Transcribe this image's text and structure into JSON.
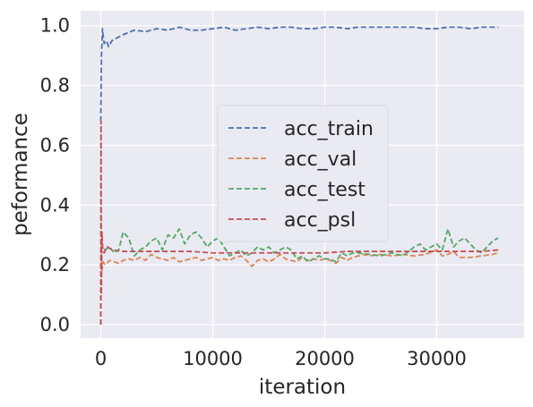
{
  "chart_data": {
    "type": "line",
    "xlabel": "iteration",
    "ylabel": "peformance",
    "xlim": [
      -1800,
      37800
    ],
    "ylim": [
      -0.045,
      1.05
    ],
    "x_ticks": [
      0,
      10000,
      20000,
      30000
    ],
    "y_ticks": [
      0.0,
      0.2,
      0.4,
      0.6,
      0.8,
      1.0
    ],
    "x_tick_labels": [
      "0",
      "10000",
      "20000",
      "30000"
    ],
    "y_tick_labels": [
      "0.0",
      "0.2",
      "0.4",
      "0.6",
      "0.8",
      "1.0"
    ],
    "grid": true,
    "background": "#EAEAF2",
    "legend_position": "center-right",
    "line_style": "dashed",
    "series": [
      {
        "name": "acc_train",
        "color": "#4C72B0",
        "points": [
          [
            0,
            0.68
          ],
          [
            60,
            0.9
          ],
          [
            150,
            0.99
          ],
          [
            300,
            0.94
          ],
          [
            500,
            0.95
          ],
          [
            700,
            0.93
          ],
          [
            1000,
            0.95
          ],
          [
            1500,
            0.96
          ],
          [
            2000,
            0.97
          ],
          [
            3000,
            0.985
          ],
          [
            4000,
            0.98
          ],
          [
            5000,
            0.99
          ],
          [
            6000,
            0.985
          ],
          [
            7000,
            0.995
          ],
          [
            8000,
            0.985
          ],
          [
            9000,
            0.985
          ],
          [
            10000,
            0.99
          ],
          [
            11000,
            0.995
          ],
          [
            12000,
            0.985
          ],
          [
            13000,
            0.99
          ],
          [
            14000,
            0.995
          ],
          [
            15000,
            0.99
          ],
          [
            16000,
            0.995
          ],
          [
            17000,
            0.995
          ],
          [
            18000,
            0.99
          ],
          [
            19000,
            0.99
          ],
          [
            20000,
            0.995
          ],
          [
            21000,
            0.995
          ],
          [
            22000,
            0.99
          ],
          [
            23000,
            0.995
          ],
          [
            24000,
            0.995
          ],
          [
            25000,
            0.995
          ],
          [
            26000,
            0.995
          ],
          [
            27000,
            0.995
          ],
          [
            28000,
            0.995
          ],
          [
            29000,
            0.99
          ],
          [
            30000,
            0.99
          ],
          [
            31000,
            0.995
          ],
          [
            32000,
            0.995
          ],
          [
            33000,
            0.99
          ],
          [
            34000,
            0.995
          ],
          [
            35500,
            0.995
          ]
        ]
      },
      {
        "name": "acc_val",
        "color": "#DD8452",
        "points": [
          [
            0,
            0.0
          ],
          [
            40,
            0.28
          ],
          [
            100,
            0.18
          ],
          [
            200,
            0.21
          ],
          [
            400,
            0.2
          ],
          [
            800,
            0.215
          ],
          [
            1200,
            0.21
          ],
          [
            1600,
            0.205
          ],
          [
            2000,
            0.215
          ],
          [
            2500,
            0.22
          ],
          [
            3000,
            0.215
          ],
          [
            3500,
            0.225
          ],
          [
            4000,
            0.215
          ],
          [
            4500,
            0.235
          ],
          [
            5000,
            0.225
          ],
          [
            5500,
            0.22
          ],
          [
            6000,
            0.215
          ],
          [
            6500,
            0.225
          ],
          [
            7000,
            0.21
          ],
          [
            7500,
            0.215
          ],
          [
            8000,
            0.22
          ],
          [
            8500,
            0.225
          ],
          [
            9000,
            0.215
          ],
          [
            9500,
            0.22
          ],
          [
            10000,
            0.225
          ],
          [
            10500,
            0.215
          ],
          [
            11000,
            0.22
          ],
          [
            11500,
            0.215
          ],
          [
            12000,
            0.225
          ],
          [
            12500,
            0.23
          ],
          [
            13000,
            0.215
          ],
          [
            13500,
            0.195
          ],
          [
            14000,
            0.215
          ],
          [
            14500,
            0.22
          ],
          [
            15000,
            0.21
          ],
          [
            15500,
            0.22
          ],
          [
            16000,
            0.235
          ],
          [
            16500,
            0.22
          ],
          [
            17000,
            0.215
          ],
          [
            17500,
            0.21
          ],
          [
            18000,
            0.225
          ],
          [
            18500,
            0.215
          ],
          [
            19000,
            0.22
          ],
          [
            19500,
            0.215
          ],
          [
            20000,
            0.22
          ],
          [
            20500,
            0.215
          ],
          [
            21000,
            0.205
          ],
          [
            21500,
            0.225
          ],
          [
            22000,
            0.215
          ],
          [
            22500,
            0.225
          ],
          [
            23000,
            0.23
          ],
          [
            23500,
            0.235
          ],
          [
            24000,
            0.23
          ],
          [
            25000,
            0.235
          ],
          [
            26000,
            0.23
          ],
          [
            27000,
            0.235
          ],
          [
            28000,
            0.23
          ],
          [
            29000,
            0.235
          ],
          [
            30000,
            0.25
          ],
          [
            30500,
            0.23
          ],
          [
            31000,
            0.235
          ],
          [
            31500,
            0.245
          ],
          [
            32000,
            0.225
          ],
          [
            33000,
            0.225
          ],
          [
            34000,
            0.23
          ],
          [
            35000,
            0.235
          ],
          [
            35500,
            0.24
          ]
        ]
      },
      {
        "name": "acc_test",
        "color": "#55A868",
        "points": [
          [
            0,
            0.0
          ],
          [
            40,
            0.25
          ],
          [
            150,
            0.26
          ],
          [
            400,
            0.25
          ],
          [
            800,
            0.26
          ],
          [
            1200,
            0.24
          ],
          [
            1600,
            0.25
          ],
          [
            2000,
            0.31
          ],
          [
            2500,
            0.29
          ],
          [
            3000,
            0.23
          ],
          [
            3500,
            0.25
          ],
          [
            4000,
            0.26
          ],
          [
            4500,
            0.28
          ],
          [
            5000,
            0.29
          ],
          [
            5500,
            0.25
          ],
          [
            6000,
            0.3
          ],
          [
            6500,
            0.29
          ],
          [
            7000,
            0.32
          ],
          [
            7500,
            0.27
          ],
          [
            8000,
            0.3
          ],
          [
            8500,
            0.31
          ],
          [
            9000,
            0.29
          ],
          [
            9500,
            0.26
          ],
          [
            10000,
            0.28
          ],
          [
            10500,
            0.29
          ],
          [
            11000,
            0.26
          ],
          [
            11500,
            0.23
          ],
          [
            12000,
            0.24
          ],
          [
            12500,
            0.25
          ],
          [
            13000,
            0.23
          ],
          [
            13500,
            0.24
          ],
          [
            14000,
            0.26
          ],
          [
            14500,
            0.25
          ],
          [
            15000,
            0.26
          ],
          [
            15500,
            0.24
          ],
          [
            16000,
            0.25
          ],
          [
            16500,
            0.26
          ],
          [
            17000,
            0.25
          ],
          [
            17500,
            0.22
          ],
          [
            18000,
            0.23
          ],
          [
            18500,
            0.21
          ],
          [
            19000,
            0.22
          ],
          [
            19500,
            0.23
          ],
          [
            20000,
            0.22
          ],
          [
            20500,
            0.22
          ],
          [
            21000,
            0.21
          ],
          [
            21500,
            0.24
          ],
          [
            22000,
            0.23
          ],
          [
            22500,
            0.24
          ],
          [
            23000,
            0.24
          ],
          [
            24000,
            0.235
          ],
          [
            25000,
            0.23
          ],
          [
            26000,
            0.24
          ],
          [
            27000,
            0.23
          ],
          [
            28000,
            0.26
          ],
          [
            28500,
            0.27
          ],
          [
            29000,
            0.25
          ],
          [
            29500,
            0.26
          ],
          [
            30000,
            0.27
          ],
          [
            30500,
            0.25
          ],
          [
            31000,
            0.32
          ],
          [
            31500,
            0.26
          ],
          [
            32000,
            0.28
          ],
          [
            32500,
            0.29
          ],
          [
            33000,
            0.27
          ],
          [
            33500,
            0.25
          ],
          [
            34000,
            0.24
          ],
          [
            34500,
            0.26
          ],
          [
            35000,
            0.28
          ],
          [
            35500,
            0.29
          ]
        ]
      },
      {
        "name": "acc_psl",
        "color": "#C44E52",
        "points": [
          [
            0,
            0.0
          ],
          [
            20,
            0.68
          ],
          [
            50,
            0.1
          ],
          [
            100,
            0.31
          ],
          [
            160,
            0.26
          ],
          [
            300,
            0.24
          ],
          [
            600,
            0.26
          ],
          [
            1000,
            0.25
          ],
          [
            2000,
            0.245
          ],
          [
            3000,
            0.245
          ],
          [
            4000,
            0.245
          ],
          [
            6000,
            0.245
          ],
          [
            8000,
            0.245
          ],
          [
            10000,
            0.24
          ],
          [
            12000,
            0.24
          ],
          [
            14000,
            0.24
          ],
          [
            16000,
            0.24
          ],
          [
            18000,
            0.24
          ],
          [
            20000,
            0.24
          ],
          [
            22000,
            0.245
          ],
          [
            24000,
            0.245
          ],
          [
            26000,
            0.245
          ],
          [
            28000,
            0.245
          ],
          [
            30000,
            0.245
          ],
          [
            32000,
            0.245
          ],
          [
            34000,
            0.245
          ],
          [
            35500,
            0.25
          ]
        ]
      }
    ]
  }
}
